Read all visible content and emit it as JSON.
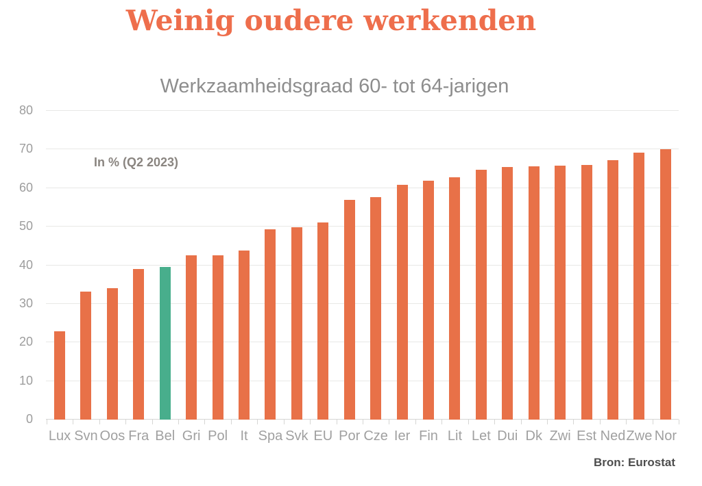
{
  "page": {
    "title": "Weinig oudere werkenden",
    "title_color": "#ee6e4c"
  },
  "chart_data": {
    "type": "bar",
    "title": "Werkzaamheidsgraad 60- tot 64-jarigen",
    "annotation": "In % (Q2 2023)",
    "source": "Bron: Eurostat",
    "categories": [
      "Lux",
      "Svn",
      "Oos",
      "Fra",
      "Bel",
      "Gri",
      "Pol",
      "It",
      "Spa",
      "Svk",
      "EU",
      "Por",
      "Cze",
      "Ier",
      "Fin",
      "Lit",
      "Let",
      "Dui",
      "Dk",
      "Zwi",
      "Est",
      "Ned",
      "Zwe",
      "Nor"
    ],
    "values": [
      22.8,
      33.1,
      34.1,
      39.1,
      39.5,
      42.6,
      42.6,
      43.9,
      49.4,
      49.8,
      51.0,
      56.9,
      57.6,
      60.9,
      61.9,
      62.8,
      64.7,
      65.4,
      65.6,
      65.8,
      66.0,
      67.3,
      69.2,
      70.1
    ],
    "bar_color": "#e87148",
    "highlight": {
      "category": "Bel",
      "index": 4,
      "color": "#48ae8c"
    },
    "ylabel": "",
    "xlabel": "",
    "ylim": [
      0,
      80
    ],
    "yticks": [
      0,
      10,
      20,
      30,
      40,
      50,
      60,
      70,
      80
    ],
    "grid": true,
    "legend": "none"
  }
}
